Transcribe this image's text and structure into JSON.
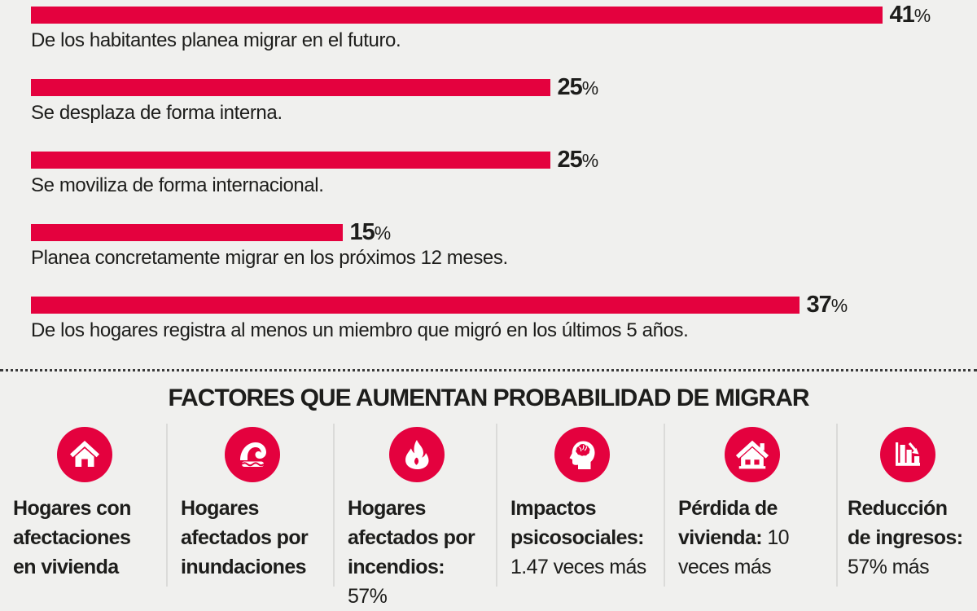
{
  "chart_data": {
    "type": "bar",
    "orientation": "horizontal",
    "unit": "%",
    "xlim": [
      0,
      45
    ],
    "bars": [
      {
        "value": 41,
        "caption": "De los habitantes planea migrar en el futuro."
      },
      {
        "value": 25,
        "caption": "Se desplaza de forma interna."
      },
      {
        "value": 25,
        "caption": "Se moviliza de forma internacional."
      },
      {
        "value": 15,
        "caption": "Planea concretamente migrar en los próximos 12 meses."
      },
      {
        "value": 37,
        "caption": "De los hogares registra al menos un miembro que migró en los últimos 5 años."
      }
    ]
  },
  "factors_section": {
    "title": "FACTORES QUE AUMENTAN PROBABILIDAD DE MIGRAR",
    "items": [
      {
        "icon": "damaged-house-icon",
        "bold": "Hogares con afectaciones en vivienda",
        "rest": ""
      },
      {
        "icon": "flood-wave-icon",
        "bold": "Hogares afectados por inundaciones",
        "rest": ""
      },
      {
        "icon": "fire-icon",
        "bold": "Hogares afectados por incendios:",
        "rest": " 57%"
      },
      {
        "icon": "head-brain-icon",
        "bold": "Impactos psicosociales:",
        "rest": " 1.47 veces más"
      },
      {
        "icon": "house-icon",
        "bold": "Pérdida de vivienda:",
        "rest": " 10 veces más"
      },
      {
        "icon": "declining-bars-icon",
        "bold": "Reducción de ingresos:",
        "rest": " 57% más"
      }
    ]
  },
  "colors": {
    "accent_red": "#E4013E",
    "background": "#F0F0EE",
    "text": "#1D1D1B"
  }
}
